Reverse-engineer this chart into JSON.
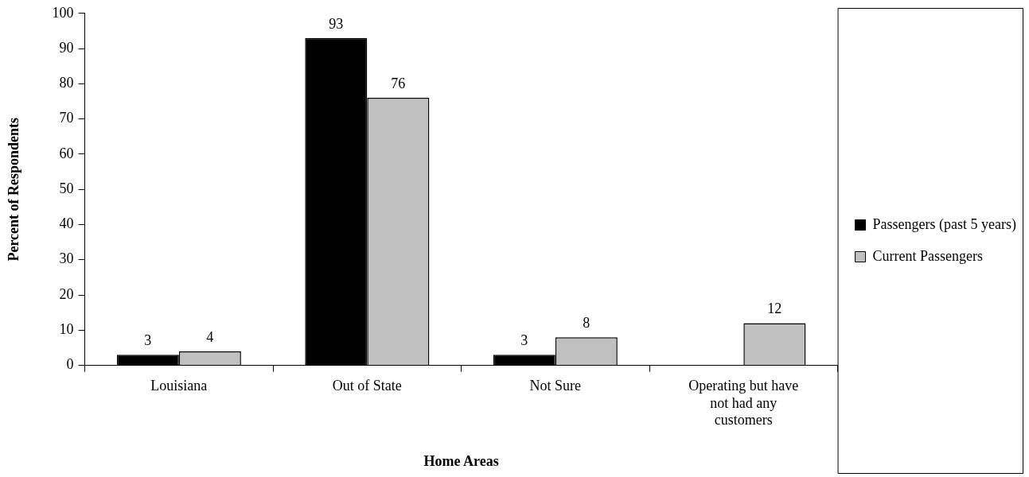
{
  "chart_data": {
    "type": "bar",
    "xlabel": "Home Areas",
    "ylabel": "Percent of Respondents",
    "categories": [
      "Louisiana",
      "Out of State",
      "Not Sure",
      "Operating but have not had any customers"
    ],
    "series": [
      {
        "name": "Passengers (past 5 years)",
        "color": "#000000",
        "values": [
          3,
          93,
          3,
          null
        ]
      },
      {
        "name": "Current Passengers",
        "color": "#c0c0c0",
        "values": [
          4,
          76,
          8,
          12
        ]
      }
    ],
    "ylim": [
      0,
      100
    ],
    "yticks": [
      0,
      10,
      20,
      30,
      40,
      50,
      60,
      70,
      80,
      90,
      100
    ],
    "grid": false,
    "legend": "right",
    "data_labels": true
  }
}
